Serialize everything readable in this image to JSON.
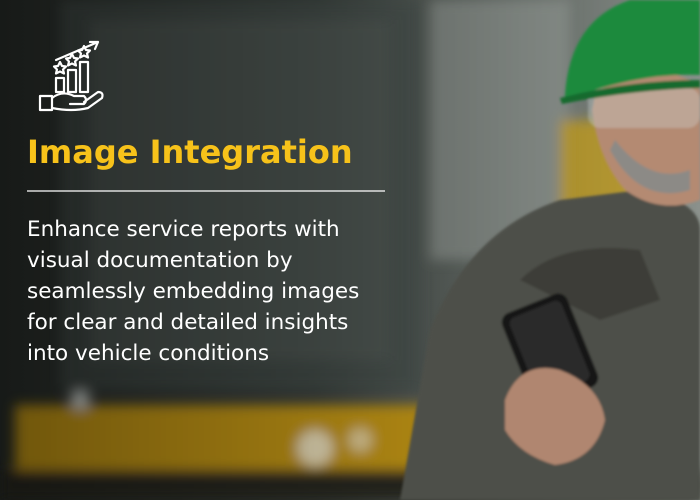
{
  "header": {
    "title": "Image Integration"
  },
  "body": {
    "lines": [
      "Enhance service reports with",
      "visual documentation by",
      "seamlessly embedding images",
      "for clear and detailed insights",
      "into vehicle conditions"
    ]
  }
}
